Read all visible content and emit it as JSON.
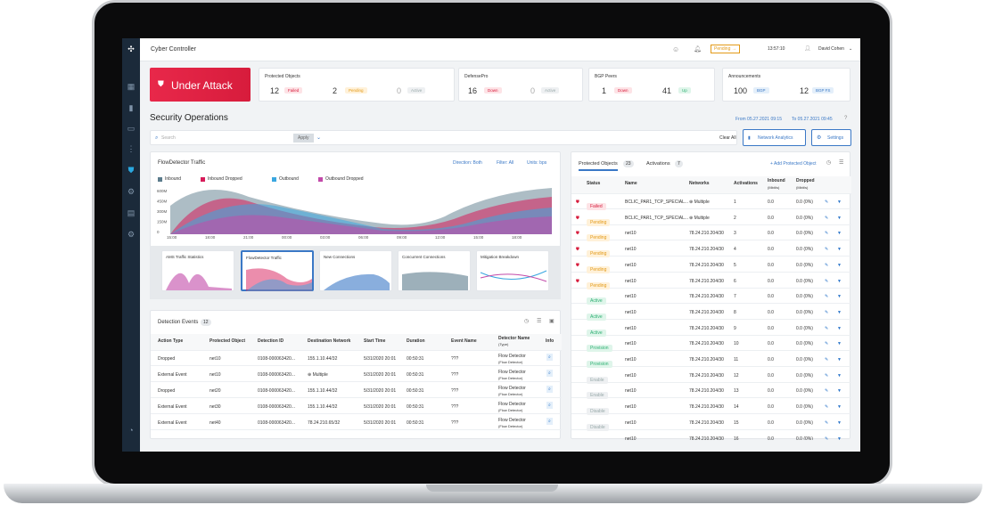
{
  "app": {
    "title": "Cyber Controller",
    "pending": "Pending →",
    "time": "13:57:10",
    "user": "David Cohen"
  },
  "attack": {
    "label": "Under Attack"
  },
  "summary": {
    "protected": {
      "title": "Protected Objects",
      "n1": "12",
      "b1": "Failed",
      "n2": "2",
      "b2": "Pending",
      "n3": "0",
      "b3": "Active"
    },
    "defensepro": {
      "title": "DefensePro",
      "n1": "16",
      "b1": "Down",
      "n2": "0",
      "b2": "Active"
    },
    "bgp": {
      "title": "BGP Peers",
      "n1": "1",
      "b1": "Down",
      "n2": "41",
      "b2": "Up"
    },
    "ann": {
      "title": "Announcements",
      "n1": "100",
      "b1": "BGP",
      "n2": "12",
      "b2": "BGP FS"
    }
  },
  "page": {
    "title": "Security Operations",
    "range_from": "From 05.27.2021 09:15",
    "range_to": "To 05.27.2021 09:45"
  },
  "search": {
    "placeholder": "Search",
    "apply": "Apply",
    "clear": "Clear All",
    "analytics": "Network Analytics",
    "settings": "Settings"
  },
  "traffic": {
    "title": "FlowDetector Traffic",
    "direction": "Direction: Both",
    "filter": "Filter: All",
    "units": "Units: bps",
    "legend": [
      "Inbound",
      "Inbound Dropped",
      "Outbound",
      "Outbound Dropped"
    ],
    "colors": [
      "#5b7c8c",
      "#d71c5a",
      "#3aa7e0",
      "#c24aa9"
    ],
    "yticks": [
      "600M",
      "450M",
      "300M",
      "150M",
      "0"
    ],
    "xticks": [
      "15:00",
      "18:00",
      "21:00",
      "00:00",
      "03:00",
      "06:00",
      "09:00",
      "12:00",
      "15:00",
      "18:00"
    ]
  },
  "minis": [
    "AMS Traffic Statistics",
    "FlowDetector Traffic",
    "New Connections",
    "Concurrent Connections",
    "Mitigation Breakdown"
  ],
  "events": {
    "title": "Detection Events",
    "count": "12",
    "cols": [
      "Action Type",
      "Protected Object",
      "Detection ID",
      "Destination Network",
      "Start Time",
      "Duration",
      "Event Name",
      "Detector Name",
      "Info"
    ],
    "detector_sub": "(Type)",
    "rows": [
      [
        "Dropped",
        "net10",
        "0108-000063420...",
        "155.1.10.44/32",
        "5/31/2020 20:01",
        "00:50:31",
        "???",
        "Flow Detector",
        "(Flow Detector)"
      ],
      [
        "External Event",
        "net10",
        "0108-000063420...",
        "Multiple",
        "5/31/2020 20:01",
        "00:50:31",
        "???",
        "Flow Detector",
        "(Flow Detector)"
      ],
      [
        "Dropped",
        "net20",
        "0108-000063420...",
        "155.1.10.44/32",
        "5/31/2020 20:01",
        "00:50:31",
        "???",
        "Flow Detector",
        "(Flow Detector)"
      ],
      [
        "External Event",
        "net30",
        "0108-000063420...",
        "155.1.10.44/32",
        "5/31/2020 20:01",
        "00:50:31",
        "???",
        "Flow Detector",
        "(Flow Detector)"
      ],
      [
        "External Event",
        "net40",
        "0108-000063420...",
        "78.24.210.65/32",
        "5/31/2020 20:01",
        "00:50:31",
        "???",
        "Flow Detector",
        "(Flow Detector)"
      ]
    ]
  },
  "po": {
    "tab1": "Protected Objects",
    "tab1_count": "23",
    "tab2": "Activations",
    "tab2_count": "7",
    "add": "+ Add Protected Object",
    "cols": [
      "Status",
      "Name",
      "Networks",
      "Activations",
      "Inbound",
      "Dropped"
    ],
    "inbound_sub": "(Mbit/s)",
    "dropped_sub": "(Mbit/s)",
    "rows": [
      [
        "Failed",
        "BCLIC_PAR1_TCP_SPECIAL...",
        "Multiple",
        "1",
        "0.0",
        "0.0 (0%)"
      ],
      [
        "Pending",
        "BCLIC_PAR1_TCP_SPECIAL...",
        "Multiple",
        "2",
        "0.0",
        "0.0 (0%)"
      ],
      [
        "Pending",
        "net10",
        "78.24.210.204/30",
        "3",
        "0.0",
        "0.0 (0%)"
      ],
      [
        "Pending",
        "net10",
        "78.24.210.204/30",
        "4",
        "0.0",
        "0.0 (0%)"
      ],
      [
        "Pending",
        "net10",
        "78.24.210.204/30",
        "5",
        "0.0",
        "0.0 (0%)"
      ],
      [
        "Pending",
        "net10",
        "78.24.210.204/30",
        "6",
        "0.0",
        "0.0 (0%)"
      ],
      [
        "Active",
        "net10",
        "78.24.210.204/30",
        "7",
        "0.0",
        "0.0 (0%)"
      ],
      [
        "Active",
        "net10",
        "78.24.210.204/30",
        "8",
        "0.0",
        "0.0 (0%)"
      ],
      [
        "Active",
        "net10",
        "78.24.210.204/30",
        "9",
        "0.0",
        "0.0 (0%)"
      ],
      [
        "Provision",
        "net10",
        "78.24.210.204/30",
        "10",
        "0.0",
        "0.0 (0%)"
      ],
      [
        "Provision",
        "net10",
        "78.24.210.204/30",
        "11",
        "0.0",
        "0.0 (0%)"
      ],
      [
        "Enable",
        "net10",
        "78.24.210.204/30",
        "12",
        "0.0",
        "0.0 (0%)"
      ],
      [
        "Enable",
        "net10",
        "78.24.210.204/30",
        "13",
        "0.0",
        "0.0 (0%)"
      ],
      [
        "Disable",
        "net10",
        "78.24.210.204/30",
        "14",
        "0.0",
        "0.0 (0%)"
      ],
      [
        "Disable",
        "net10",
        "78.24.210.204/30",
        "15",
        "0.0",
        "0.0 (0%)"
      ],
      [
        "Disable",
        "net10",
        "78.24.210.204/30",
        "16",
        "0.0",
        "0.0 (0%)"
      ]
    ]
  }
}
